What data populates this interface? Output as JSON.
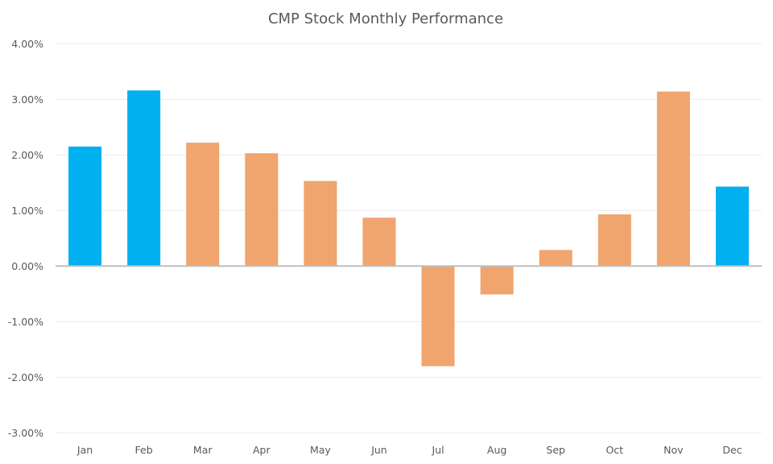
{
  "chart_data": {
    "type": "bar",
    "title": "CMP Stock Monthly Performance",
    "xlabel": "",
    "ylabel": "",
    "categories": [
      "Jan",
      "Feb",
      "Mar",
      "Apr",
      "May",
      "Jun",
      "Jul",
      "Aug",
      "Sep",
      "Oct",
      "Nov",
      "Dec"
    ],
    "values": [
      2.15,
      3.16,
      2.22,
      2.03,
      1.53,
      0.87,
      -1.8,
      -0.51,
      0.29,
      0.93,
      3.14,
      1.43
    ],
    "value_unit": "percent",
    "bar_colors": [
      "#00B0F0",
      "#00B0F0",
      "#F0A46E",
      "#F0A46E",
      "#F0A46E",
      "#F0A46E",
      "#F0A46E",
      "#F0A46E",
      "#F0A46E",
      "#F0A46E",
      "#F0A46E",
      "#00B0F0"
    ],
    "highlight_color": "#00B0F0",
    "base_color": "#F0A46E",
    "ylim": [
      -3,
      4
    ],
    "yticks": [
      4,
      3,
      2,
      1,
      0,
      -1,
      -2,
      -3
    ],
    "ytick_labels": [
      "4.00%",
      "3.00%",
      "2.00%",
      "1.00%",
      "0.00%",
      "-1.00%",
      "-2.00%",
      "-3.00%"
    ],
    "grid": true,
    "legend": "none"
  }
}
